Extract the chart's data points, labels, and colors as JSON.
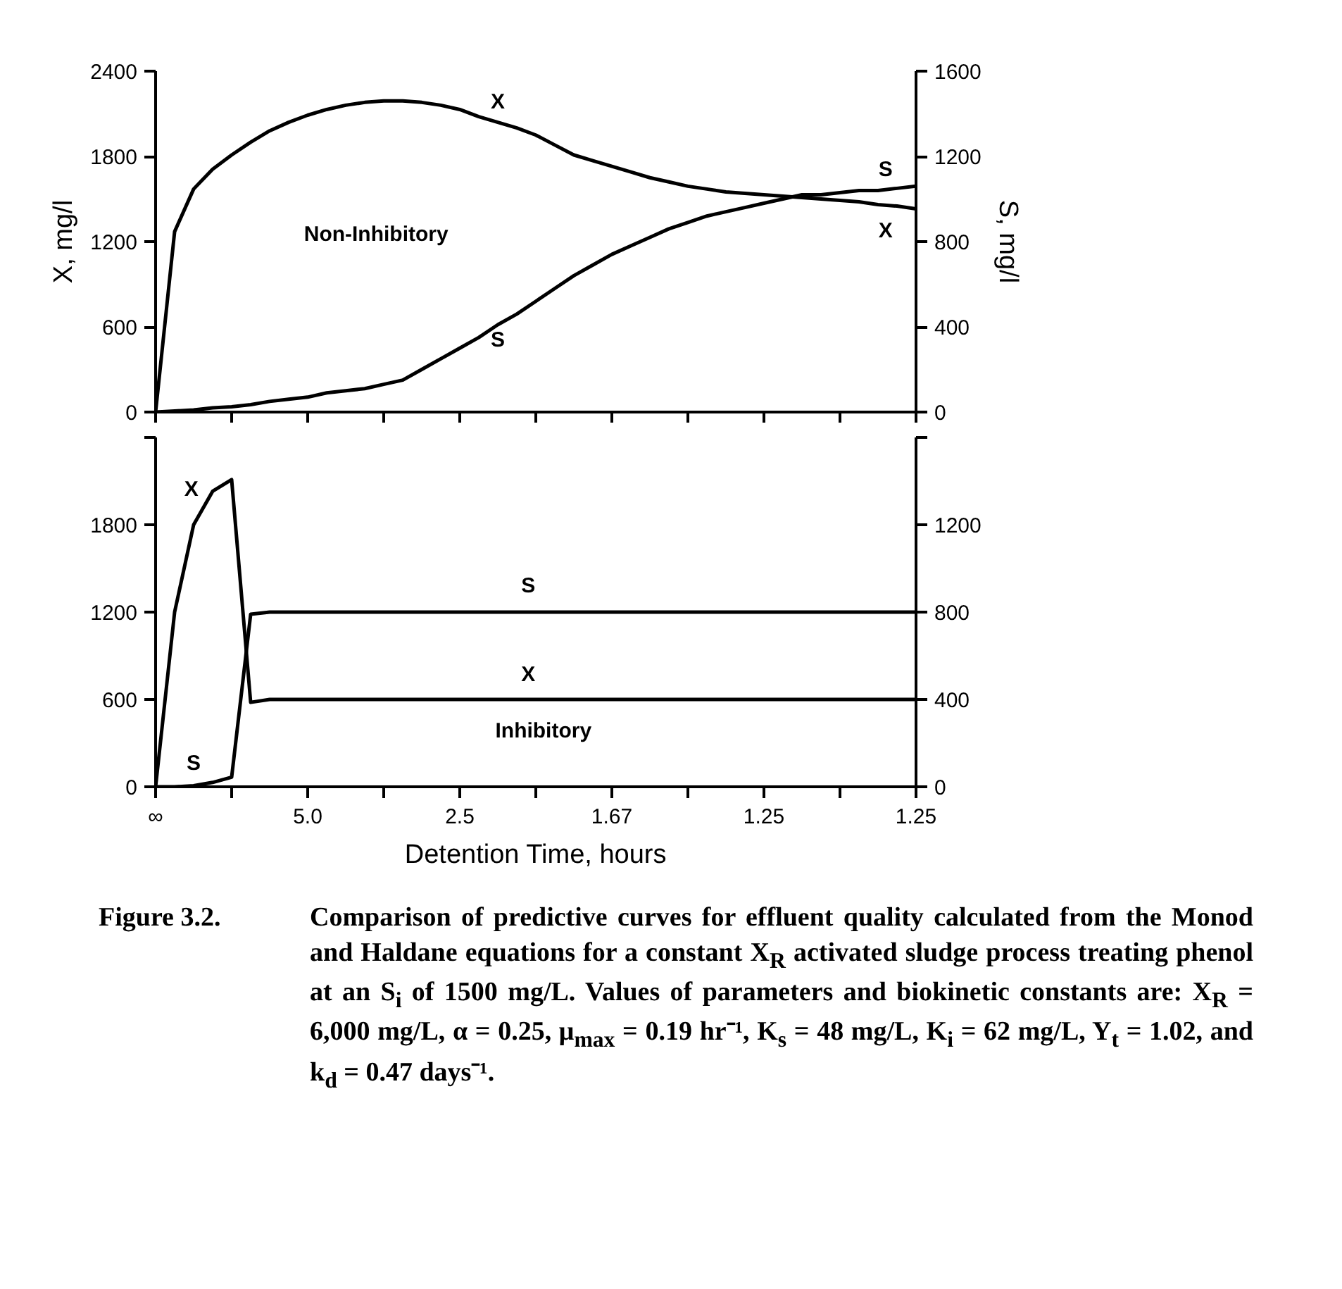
{
  "chart_data": [
    {
      "type": "line",
      "ylabel": "X, mg/l",
      "y2label": "S, mg/l",
      "ylim": [
        0,
        2400
      ],
      "y2lim": [
        0,
        1600
      ],
      "categories": [
        null,
        null,
        null,
        null,
        null,
        null,
        null,
        null,
        null,
        null,
        null,
        null,
        null,
        null,
        null,
        null,
        null,
        null,
        null,
        null,
        null,
        null,
        null,
        null,
        null,
        null,
        null,
        null,
        null,
        null,
        null,
        null,
        null,
        null,
        null,
        null,
        null,
        null,
        null,
        null,
        null
      ],
      "yticks": [
        0,
        600,
        1200,
        1800,
        2400
      ],
      "y2ticks": [
        0,
        400,
        800,
        1200,
        1600
      ],
      "grid": false,
      "marker": "none",
      "line_style": "solid",
      "series": [
        {
          "color": "#000000",
          "values": [
            0,
            1270,
            1570,
            1710,
            1810,
            1900,
            1980,
            2040,
            2090,
            2130,
            2160,
            2180,
            2190,
            2190,
            2180,
            2160,
            2130,
            2080,
            2040,
            2000,
            1950,
            1880,
            1810,
            1770,
            1730,
            1690,
            1650,
            1620,
            1590,
            1570,
            1550,
            1540,
            1530,
            1520,
            1510,
            1500,
            1490,
            1480,
            1460,
            1450,
            1430
          ]
        },
        {
          "color": "#000000",
          "axis": "y2",
          "values": [
            0,
            5,
            10,
            20,
            25,
            35,
            50,
            60,
            70,
            90,
            100,
            110,
            130,
            150,
            200,
            250,
            300,
            350,
            410,
            460,
            520,
            580,
            640,
            690,
            740,
            780,
            820,
            860,
            890,
            920,
            940,
            960,
            980,
            1000,
            1020,
            1020,
            1030,
            1040,
            1040,
            1050,
            1060
          ]
        }
      ],
      "annotations": [
        "X",
        "S",
        "X",
        "S",
        "Non-Inhibitory"
      ]
    },
    {
      "type": "line",
      "xlabel": "Detention Time, hours",
      "ylim": [
        0,
        2400
      ],
      "y2lim": [
        0,
        1600
      ],
      "categories": [
        "∞",
        null,
        null,
        null,
        null,
        null,
        null,
        null,
        "5.0",
        null,
        null,
        null,
        null,
        null,
        null,
        null,
        "2.5",
        null,
        null,
        null,
        null,
        null,
        null,
        null,
        "1.67",
        null,
        null,
        null,
        null,
        null,
        null,
        null,
        "1.25",
        null,
        null,
        null,
        null,
        null,
        null,
        null,
        "1.25"
      ],
      "yticks": [
        0,
        600,
        1200,
        1800,
        {
          "value": 2400,
          "label": null
        }
      ],
      "y2ticks": [
        0,
        400,
        800,
        1200,
        {
          "value": 1600,
          "label": null
        }
      ],
      "grid": false,
      "marker": "none",
      "line_style": "solid",
      "series": [
        {
          "color": "#000000",
          "values": [
            0,
            1200,
            1800,
            2030,
            2110,
            580,
            600,
            600,
            600,
            600,
            600,
            600,
            600,
            600,
            600,
            600,
            600,
            600,
            600,
            600,
            600,
            600,
            600,
            600,
            600,
            600,
            600,
            600,
            600,
            600,
            600,
            600,
            600,
            600,
            600,
            600,
            600,
            600,
            600,
            600,
            600
          ]
        },
        {
          "color": "#000000",
          "axis": "y2",
          "values": [
            0,
            0,
            5,
            20,
            44,
            790,
            800,
            800,
            800,
            800,
            800,
            800,
            800,
            800,
            800,
            800,
            800,
            800,
            800,
            800,
            800,
            800,
            800,
            800,
            800,
            800,
            800,
            800,
            800,
            800,
            800,
            800,
            800,
            800,
            800,
            800,
            800,
            800,
            800,
            800,
            800
          ]
        }
      ],
      "annotations": [
        "X",
        "S",
        "X",
        "Inhibitory",
        "S",
        "Figure 3.2. Comparison of predictive curves for effluent quality calculated from the Monod and Haldane equations for a constant X$_{R}$ activated sludge process treating phenol at an S$_{i}$ of 1500 mg/L. Values of parameters and biokinetic constants are: X$_{R}$ = 6,000 mg/L, α = 0.25, μ$_{max}$ = 0.19 hr⁻¹, K$_{s}$ = 48 mg/L, K$_{i}$ = 62 mg/L, Y$_{t}$ = 1.02, and k$_{d}$ = 0.47 days⁻¹."
      ]
    }
  ]
}
